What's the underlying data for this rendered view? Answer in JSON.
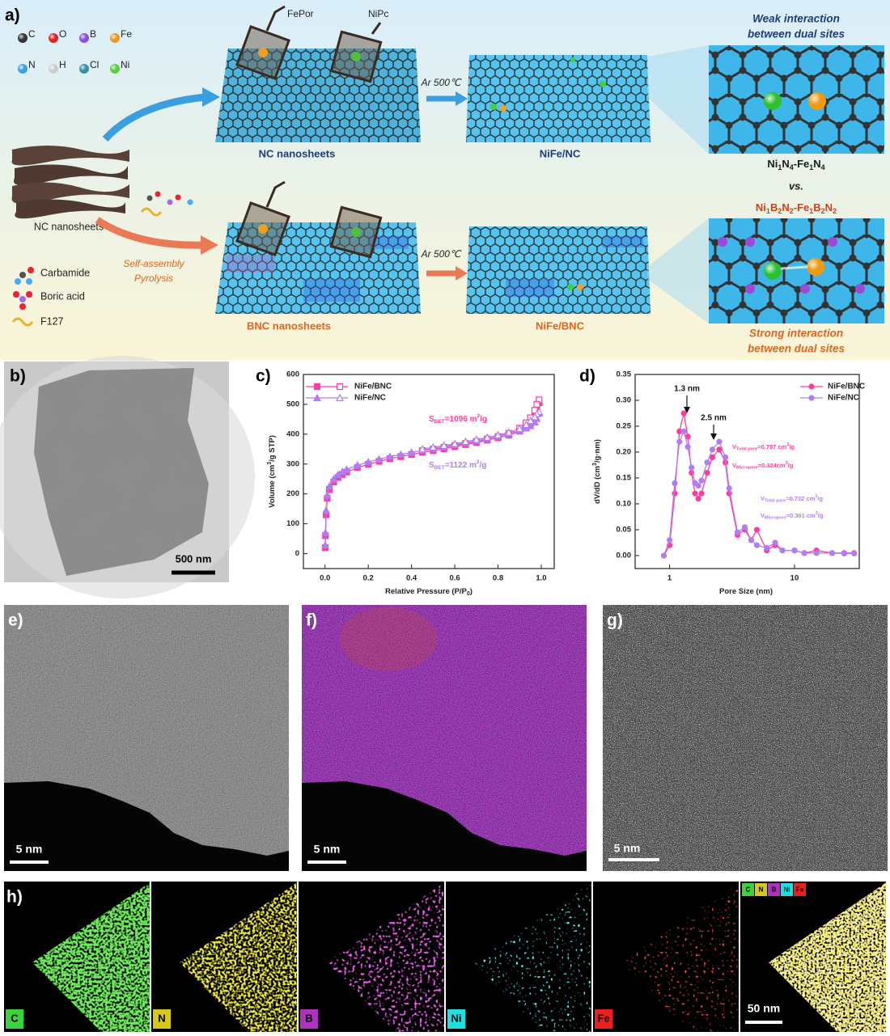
{
  "panel_a": {
    "label": "a)",
    "atoms": [
      "C",
      "O",
      "B",
      "Fe",
      "N",
      "H",
      "Cl",
      "Ni"
    ],
    "molecules": [
      "FePor",
      "NiPc"
    ],
    "top_sheet": "NC nanosheets",
    "stack": "NC nanosheets",
    "bottom_sheet": "BNC nanosheets",
    "steps": [
      "Ar 500℃",
      "Ar 500℃"
    ],
    "top_product": "NiFe/NC",
    "bottom_product": "NiFe/BNC",
    "pyrolysis": [
      "Self-assembly",
      "Pyrolysis"
    ],
    "reagents": [
      "Carbamide",
      "Boric acid",
      "F127"
    ],
    "weak": [
      "Weak interaction",
      "between dual sites"
    ],
    "strong": [
      "Strong interaction",
      "between dual sites"
    ],
    "formula_top": [
      "Ni",
      "1",
      "N",
      "4",
      "-Fe",
      "1",
      "N",
      "4"
    ],
    "vs": "vs.",
    "formula_bottom": [
      "Ni",
      "1",
      "B",
      "2",
      "N",
      "2",
      "-Fe",
      "1",
      "B",
      "2",
      "N",
      "2"
    ]
  },
  "panel_b": {
    "label": "b)",
    "scale": "500 nm"
  },
  "chart_data": [
    {
      "type": "line",
      "label": "c)",
      "x_label": [
        "Relative Pressure (P/P",
        "0",
        ")"
      ],
      "y_label": [
        "Volume (cm",
        "3",
        "/g STP)"
      ],
      "xlim": [
        -0.1,
        1.06
      ],
      "xticks": [
        {
          "value": 0,
          "label": "0.0"
        },
        {
          "value": 0.2,
          "label": "0.2"
        },
        {
          "value": 0.4,
          "label": "0.4"
        },
        {
          "value": 0.6,
          "label": "0.6"
        },
        {
          "value": 0.8,
          "label": "0.8"
        },
        {
          "value": 1,
          "label": "1.0"
        }
      ],
      "ylim": [
        -50,
        600
      ],
      "yticks": [
        0,
        100,
        200,
        300,
        400,
        500,
        600
      ],
      "annotations": [
        [
          "S",
          "BET",
          "=1096 m",
          "2",
          "/g"
        ],
        [
          "S",
          "BET",
          "=1122 m",
          "2",
          "/g"
        ]
      ],
      "series": [
        {
          "name": "NiFe/BNC",
          "color": "#ff3d9a",
          "marker": "square",
          "x": [
            0.001,
            0.002,
            0.005,
            0.01,
            0.02,
            0.04,
            0.06,
            0.08,
            0.1,
            0.15,
            0.2,
            0.25,
            0.3,
            0.35,
            0.4,
            0.45,
            0.5,
            0.55,
            0.6,
            0.65,
            0.7,
            0.75,
            0.8,
            0.85,
            0.9,
            0.93,
            0.95,
            0.97,
            0.98,
            0.99
          ],
          "values": [
            20,
            60,
            130,
            185,
            215,
            240,
            255,
            265,
            273,
            288,
            299,
            309,
            318,
            325,
            332,
            339,
            345,
            351,
            358,
            365,
            372,
            380,
            388,
            397,
            410,
            422,
            435,
            460,
            480,
            505
          ],
          "desorption_x": [
            0.99,
            0.98,
            0.97,
            0.95,
            0.93,
            0.9,
            0.85,
            0.8,
            0.75,
            0.7,
            0.65,
            0.6,
            0.55,
            0.5,
            0.45
          ],
          "desorption_values": [
            515,
            500,
            480,
            455,
            438,
            420,
            403,
            392,
            384,
            376,
            369,
            362,
            356,
            350,
            345
          ]
        },
        {
          "name": "NiFe/NC",
          "color": "#b07df5",
          "marker": "triangle",
          "x": [
            0.001,
            0.002,
            0.005,
            0.01,
            0.02,
            0.04,
            0.06,
            0.08,
            0.1,
            0.15,
            0.2,
            0.25,
            0.3,
            0.35,
            0.4,
            0.45,
            0.5,
            0.55,
            0.6,
            0.65,
            0.7,
            0.75,
            0.8,
            0.85,
            0.9,
            0.93,
            0.95,
            0.97,
            0.98,
            0.99
          ],
          "values": [
            28,
            70,
            145,
            195,
            225,
            250,
            264,
            274,
            282,
            296,
            307,
            316,
            325,
            332,
            339,
            346,
            352,
            358,
            365,
            371,
            378,
            385,
            393,
            401,
            412,
            420,
            428,
            440,
            452,
            470
          ],
          "desorption_x": [
            0.99,
            0.98,
            0.97,
            0.95,
            0.93,
            0.9,
            0.85,
            0.8,
            0.75,
            0.7,
            0.65,
            0.6,
            0.55,
            0.5,
            0.45
          ],
          "desorption_values": [
            475,
            468,
            458,
            445,
            432,
            418,
            406,
            397,
            389,
            382,
            375,
            368,
            362,
            356,
            350
          ]
        }
      ]
    },
    {
      "type": "line",
      "label": "d)",
      "log_x": true,
      "x_label": [
        "Pore Size (nm)"
      ],
      "y_label": [
        "dV/dD (cm",
        "3",
        "/g·nm)"
      ],
      "xlim": [
        0.53,
        33
      ],
      "xticks": [
        1,
        10
      ],
      "ylim": [
        -0.025,
        0.35
      ],
      "yticks": [
        {
          "value": 0,
          "label": "0.00"
        },
        {
          "value": 0.05,
          "label": "0.05"
        },
        {
          "value": 0.1,
          "label": "0.10"
        },
        {
          "value": 0.15,
          "label": "0.15"
        },
        {
          "value": 0.2,
          "label": "0.20"
        },
        {
          "value": 0.25,
          "label": "0.25"
        },
        {
          "value": 0.3,
          "label": "0.30"
        },
        {
          "value": 0.35,
          "label": "0.35"
        }
      ],
      "peaks": [
        "1.3 nm",
        "2.5 nm"
      ],
      "annotations": [
        [
          "V",
          "Total pore",
          "=0.797 cm",
          "3",
          "/g"
        ],
        [
          "V",
          "Micropore",
          "=0.324cm",
          "3",
          "/g"
        ],
        [
          "V",
          "Total pore",
          "=0.732 cm",
          "3",
          "/g"
        ],
        [
          "V",
          "Micropore",
          "=0.361 cm",
          "3",
          "/g"
        ]
      ],
      "series": [
        {
          "name": "NiFe/BNC",
          "color": "#ff3d9a",
          "marker": "circle",
          "x": [
            0.9,
            1.0,
            1.1,
            1.2,
            1.3,
            1.4,
            1.5,
            1.6,
            1.7,
            1.8,
            2.0,
            2.2,
            2.5,
            2.8,
            3.0,
            3.5,
            4.0,
            4.5,
            5.0,
            6.0,
            7.0,
            8,
            10,
            12,
            15,
            20,
            25,
            30
          ],
          "values": [
            0.0,
            0.02,
            0.12,
            0.24,
            0.275,
            0.23,
            0.16,
            0.12,
            0.11,
            0.12,
            0.16,
            0.19,
            0.205,
            0.18,
            0.12,
            0.04,
            0.05,
            0.03,
            0.05,
            0.01,
            0.02,
            0.01,
            0.01,
            0.005,
            0.01,
            0.005,
            0.005,
            0.005
          ]
        },
        {
          "name": "NiFe/NC",
          "color": "#b07df5",
          "marker": "circle",
          "x": [
            0.9,
            1.0,
            1.1,
            1.2,
            1.3,
            1.4,
            1.5,
            1.6,
            1.7,
            1.8,
            2.0,
            2.2,
            2.5,
            2.8,
            3.0,
            3.5,
            4.0,
            4.5,
            5.0,
            6.0,
            7.0,
            8,
            10,
            12,
            15,
            20,
            25,
            30
          ],
          "values": [
            0.0,
            0.03,
            0.14,
            0.22,
            0.24,
            0.21,
            0.17,
            0.14,
            0.135,
            0.145,
            0.18,
            0.205,
            0.22,
            0.19,
            0.13,
            0.045,
            0.055,
            0.03,
            0.02,
            0.015,
            0.025,
            0.01,
            0.01,
            0.005,
            0.005,
            0.005,
            0.004,
            0.004
          ]
        }
      ]
    }
  ],
  "panel_e": {
    "label": "e)",
    "scale": "5 nm"
  },
  "panel_f": {
    "label": "f)",
    "scale": "5 nm"
  },
  "panel_g": {
    "label": "g)",
    "scale": "5 nm"
  },
  "panel_h": {
    "label": "h)",
    "maps": [
      "C",
      "N",
      "B",
      "Ni",
      "Fe"
    ],
    "overlay_legend": [
      "C",
      "N",
      "B",
      "Ni",
      "Fe"
    ],
    "scale": "50 nm"
  }
}
